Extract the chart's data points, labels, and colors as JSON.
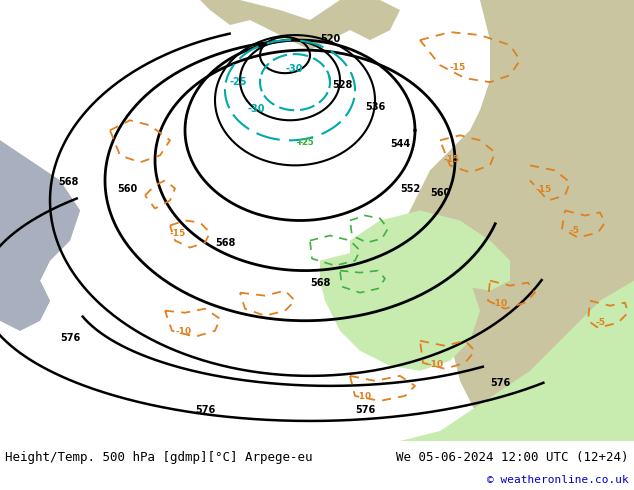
{
  "title_left": "Height/Temp. 500 hPa [gdmp][°C] Arpege-eu",
  "title_right": "We 05-06-2024 12:00 UTC (12+24)",
  "copyright": "© weatheronline.co.uk",
  "bg_land": "#c8c5a0",
  "bg_sea": "#a8b0c0",
  "bg_white": "#e8e8e8",
  "bg_green": "#c8ebb0",
  "title_fontsize": 9,
  "copyright_color": "#0000cc",
  "orange": "#e08020",
  "cyan": "#00aaaa",
  "green_line": "#40b040"
}
